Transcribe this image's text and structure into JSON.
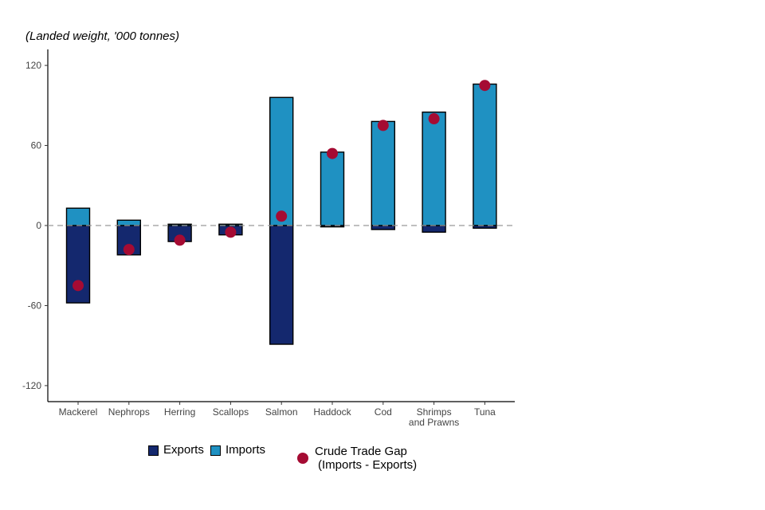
{
  "chart_data": {
    "type": "bar",
    "stacked": true,
    "unit_label": "(Landed weight, '000 tonnes)",
    "categories": [
      "Mackerel",
      "Nephrops",
      "Herring",
      "Scallops",
      "Salmon",
      "Haddock",
      "Cod",
      "Shrimps and Prawns",
      "Tuna"
    ],
    "series": [
      {
        "name": "Exports",
        "color": "#14286e",
        "values": [
          -58,
          -22,
          -12,
          -7,
          -89,
          -1,
          -3,
          -5,
          -2
        ]
      },
      {
        "name": "Imports",
        "color": "#1f91c2",
        "values": [
          13,
          4,
          1,
          1,
          96,
          55,
          78,
          85,
          106
        ]
      }
    ],
    "points": {
      "name": "Crude Trade Gap (Imports - Exports)",
      "color": "#a50b33",
      "values": [
        -45,
        -18,
        -11,
        -5,
        7,
        54,
        75,
        80,
        105
      ]
    },
    "yticks": [
      -120,
      -60,
      0,
      60,
      120
    ],
    "ylim": [
      -132,
      132
    ],
    "zero_line": "dashed",
    "grid": false,
    "legend": {
      "placement": "bottom",
      "exports_label": "Exports",
      "imports_label": "Imports",
      "gap_label_line1": "Crude Trade Gap",
      "gap_label_line2": "(Imports - Exports)"
    }
  }
}
